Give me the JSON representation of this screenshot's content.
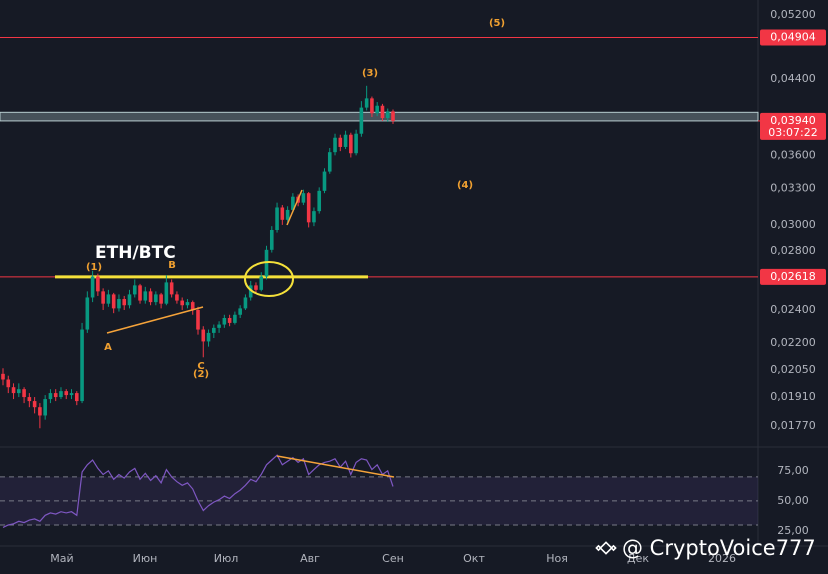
{
  "chart_data": {
    "type": "candlestick",
    "title": "ETH/BTC",
    "log_scale": true,
    "grid": false,
    "up_color": "#089981",
    "down_color": "#f23645",
    "open": [
      0.0203,
      0.02,
      0.0196,
      0.0193,
      0.0195,
      0.0191,
      0.0189,
      0.0186,
      0.0182,
      0.019,
      0.0193,
      0.0191,
      0.0194,
      0.0192,
      0.0193,
      0.0189,
      0.0228,
      0.0248,
      0.0262,
      0.0252,
      0.0244,
      0.025,
      0.0241,
      0.0247,
      0.0243,
      0.025,
      0.0256,
      0.0246,
      0.0252,
      0.0245,
      0.025,
      0.0244,
      0.0258,
      0.025,
      0.0246,
      0.0243,
      0.0245,
      0.024,
      0.0228,
      0.0221,
      0.0226,
      0.0229,
      0.0231,
      0.0235,
      0.0232,
      0.0237,
      0.0241,
      0.0248,
      0.0256,
      0.0253,
      0.0262,
      0.0281,
      0.0296,
      0.0314,
      0.0304,
      0.0312,
      0.0323,
      0.0318,
      0.0326,
      0.0302,
      0.0311,
      0.0328,
      0.0345,
      0.0363,
      0.0377,
      0.0368,
      0.038,
      0.0362,
      0.0381,
      0.0408,
      0.0418,
      0.0402,
      0.041,
      0.0397,
      0.0404
    ],
    "high": [
      0.0206,
      0.0202,
      0.0198,
      0.0198,
      0.0196,
      0.0193,
      0.0191,
      0.0188,
      0.0192,
      0.0195,
      0.0195,
      0.0196,
      0.0195,
      0.0195,
      0.0194,
      0.0232,
      0.0252,
      0.0266,
      0.0264,
      0.0254,
      0.0253,
      0.0251,
      0.025,
      0.0249,
      0.0253,
      0.026,
      0.0257,
      0.0255,
      0.0254,
      0.0252,
      0.0251,
      0.0263,
      0.026,
      0.0252,
      0.0248,
      0.0247,
      0.0246,
      0.0242,
      0.023,
      0.0228,
      0.0231,
      0.0233,
      0.0237,
      0.0237,
      0.0239,
      0.0243,
      0.025,
      0.0259,
      0.0258,
      0.0265,
      0.0284,
      0.0299,
      0.0318,
      0.0316,
      0.0315,
      0.0326,
      0.0325,
      0.0329,
      0.0327,
      0.0314,
      0.0331,
      0.0348,
      0.0367,
      0.0381,
      0.038,
      0.0384,
      0.0382,
      0.0385,
      0.0415,
      0.0432,
      0.042,
      0.0414,
      0.0412,
      0.0407,
      0.0406
    ],
    "low": [
      0.0197,
      0.0193,
      0.019,
      0.0191,
      0.0188,
      0.0186,
      0.0183,
      0.0176,
      0.018,
      0.0188,
      0.0189,
      0.019,
      0.019,
      0.019,
      0.0187,
      0.0188,
      0.0226,
      0.0245,
      0.0249,
      0.024,
      0.0242,
      0.0238,
      0.0239,
      0.024,
      0.0241,
      0.0248,
      0.0244,
      0.0244,
      0.0243,
      0.0243,
      0.0241,
      0.0243,
      0.0248,
      0.0244,
      0.024,
      0.0241,
      0.0237,
      0.0225,
      0.0212,
      0.0218,
      0.0223,
      0.0226,
      0.0229,
      0.023,
      0.0231,
      0.0235,
      0.024,
      0.0246,
      0.0251,
      0.0252,
      0.026,
      0.0279,
      0.0294,
      0.03,
      0.0302,
      0.031,
      0.0315,
      0.0316,
      0.0298,
      0.0299,
      0.0309,
      0.0326,
      0.0343,
      0.036,
      0.0364,
      0.0366,
      0.0358,
      0.036,
      0.0378,
      0.0405,
      0.0398,
      0.0399,
      0.0394,
      0.0393,
      0.0391
    ],
    "close": [
      0.02,
      0.0196,
      0.0193,
      0.0195,
      0.0191,
      0.0189,
      0.0186,
      0.0182,
      0.019,
      0.0193,
      0.0191,
      0.0194,
      0.0192,
      0.0193,
      0.0189,
      0.0228,
      0.0248,
      0.0262,
      0.0252,
      0.0244,
      0.025,
      0.0241,
      0.0247,
      0.0243,
      0.025,
      0.0256,
      0.0246,
      0.0252,
      0.0245,
      0.025,
      0.0244,
      0.0258,
      0.025,
      0.0246,
      0.0243,
      0.0245,
      0.024,
      0.0228,
      0.0221,
      0.0226,
      0.0229,
      0.0231,
      0.0235,
      0.0232,
      0.0237,
      0.0241,
      0.0248,
      0.0256,
      0.0253,
      0.0262,
      0.0281,
      0.0296,
      0.0314,
      0.0304,
      0.0312,
      0.0323,
      0.0318,
      0.0326,
      0.0302,
      0.0311,
      0.0328,
      0.0345,
      0.0363,
      0.0377,
      0.0368,
      0.038,
      0.0362,
      0.0381,
      0.0408,
      0.0418,
      0.0402,
      0.041,
      0.0397,
      0.0404,
      0.0394
    ],
    "ylim": [
      0.0168,
      0.0541
    ],
    "yticks": [
      {
        "value": 0.052,
        "label": "0,05200"
      },
      {
        "value": 0.044,
        "label": "0,04400"
      },
      {
        "value": 0.036,
        "label": "0,03600"
      },
      {
        "value": 0.033,
        "label": "0,03300"
      },
      {
        "value": 0.03,
        "label": "0,03000"
      },
      {
        "value": 0.028,
        "label": "0,02800"
      },
      {
        "value": 0.024,
        "label": "0,02400"
      },
      {
        "value": 0.022,
        "label": "0,02200"
      },
      {
        "value": 0.0205,
        "label": "0,02050"
      },
      {
        "value": 0.0191,
        "label": "0,01910"
      },
      {
        "value": 0.0177,
        "label": "0,01770"
      }
    ],
    "x_labels": [
      "Май",
      "Июн",
      "Июл",
      "Авг",
      "Сен",
      "Окт",
      "Ноя",
      "Дек",
      "2026"
    ],
    "levels": [
      {
        "value": 0.04904,
        "label": "0,04904",
        "color": "#f23645"
      },
      {
        "value": 0.02618,
        "label": "0,02618",
        "color": "#f23645"
      }
    ],
    "current_price": {
      "value": 0.0394,
      "label": "0,03940",
      "countdown": "03:07:22",
      "color": "#f23645"
    },
    "zone": [
      0.0394,
      0.0403
    ],
    "annotations": [
      "(5)",
      "(3)",
      "(4)",
      "(1)",
      "B",
      "A",
      "C",
      "(2)"
    ],
    "rsi": {
      "color": "#7e57c2",
      "values": [
        28,
        30,
        31,
        33,
        32,
        34,
        35,
        33,
        38,
        40,
        39,
        41,
        40,
        41,
        38,
        74,
        80,
        84,
        77,
        72,
        75,
        68,
        72,
        69,
        74,
        77,
        68,
        73,
        67,
        71,
        65,
        76,
        70,
        66,
        63,
        65,
        60,
        50,
        42,
        46,
        49,
        51,
        54,
        52,
        56,
        59,
        63,
        68,
        66,
        72,
        80,
        84,
        88,
        80,
        83,
        86,
        82,
        85,
        72,
        76,
        80,
        82,
        83,
        85,
        78,
        83,
        72,
        82,
        85,
        84,
        76,
        80,
        72,
        75,
        62
      ],
      "ylim": [
        12.5,
        94
      ],
      "yticks": [
        {
          "value": 75,
          "label": "75,00"
        },
        {
          "value": 50,
          "label": "50,00"
        },
        {
          "value": 25,
          "label": "25,00"
        }
      ],
      "bands": [
        30,
        50,
        70
      ]
    },
    "watermark": "@ CryptoVoice777"
  }
}
